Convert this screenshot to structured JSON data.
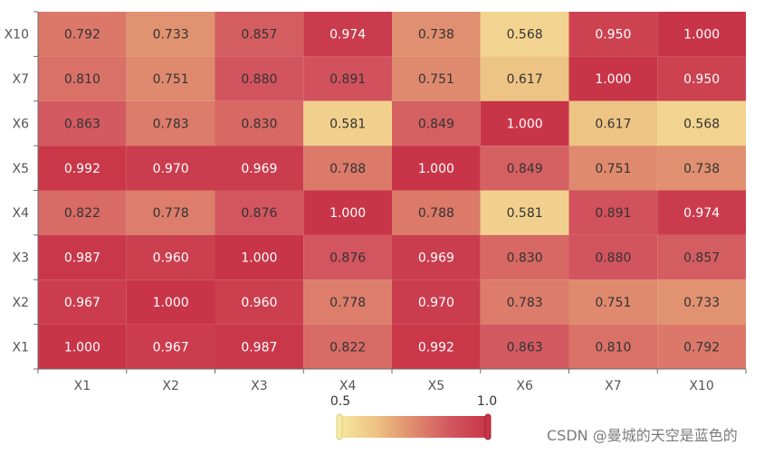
{
  "chart_data": {
    "type": "heatmap",
    "x_categories": [
      "X1",
      "X2",
      "X3",
      "X4",
      "X5",
      "X6",
      "X7",
      "X10"
    ],
    "y_categories": [
      "X10",
      "X7",
      "X6",
      "X5",
      "X4",
      "X3",
      "X2",
      "X1"
    ],
    "values": [
      [
        "0.792",
        "0.733",
        "0.857",
        "0.974",
        "0.738",
        "0.568",
        "0.950",
        "1.000"
      ],
      [
        "0.810",
        "0.751",
        "0.880",
        "0.891",
        "0.751",
        "0.617",
        "1.000",
        "0.950"
      ],
      [
        "0.863",
        "0.783",
        "0.830",
        "0.581",
        "0.849",
        "1.000",
        "0.617",
        "0.568"
      ],
      [
        "0.992",
        "0.970",
        "0.969",
        "0.788",
        "1.000",
        "0.849",
        "0.751",
        "0.738"
      ],
      [
        "0.822",
        "0.778",
        "0.876",
        "1.000",
        "0.788",
        "0.581",
        "0.891",
        "0.974"
      ],
      [
        "0.987",
        "0.960",
        "1.000",
        "0.876",
        "0.969",
        "0.830",
        "0.880",
        "0.857"
      ],
      [
        "0.967",
        "1.000",
        "0.960",
        "0.778",
        "0.970",
        "0.783",
        "0.751",
        "0.733"
      ],
      [
        "1.000",
        "0.967",
        "0.987",
        "0.822",
        "0.992",
        "0.863",
        "0.810",
        "0.792"
      ]
    ],
    "color_scale": {
      "min": 0.5,
      "max": 1.0,
      "min_label": "0.5",
      "max_label": "1.0",
      "colors": [
        "#f8e9a1",
        "#edc282",
        "#df8a6e",
        "#d2555f",
        "#c83548"
      ]
    }
  },
  "watermark": "CSDN @曼城的天空是蓝色的"
}
